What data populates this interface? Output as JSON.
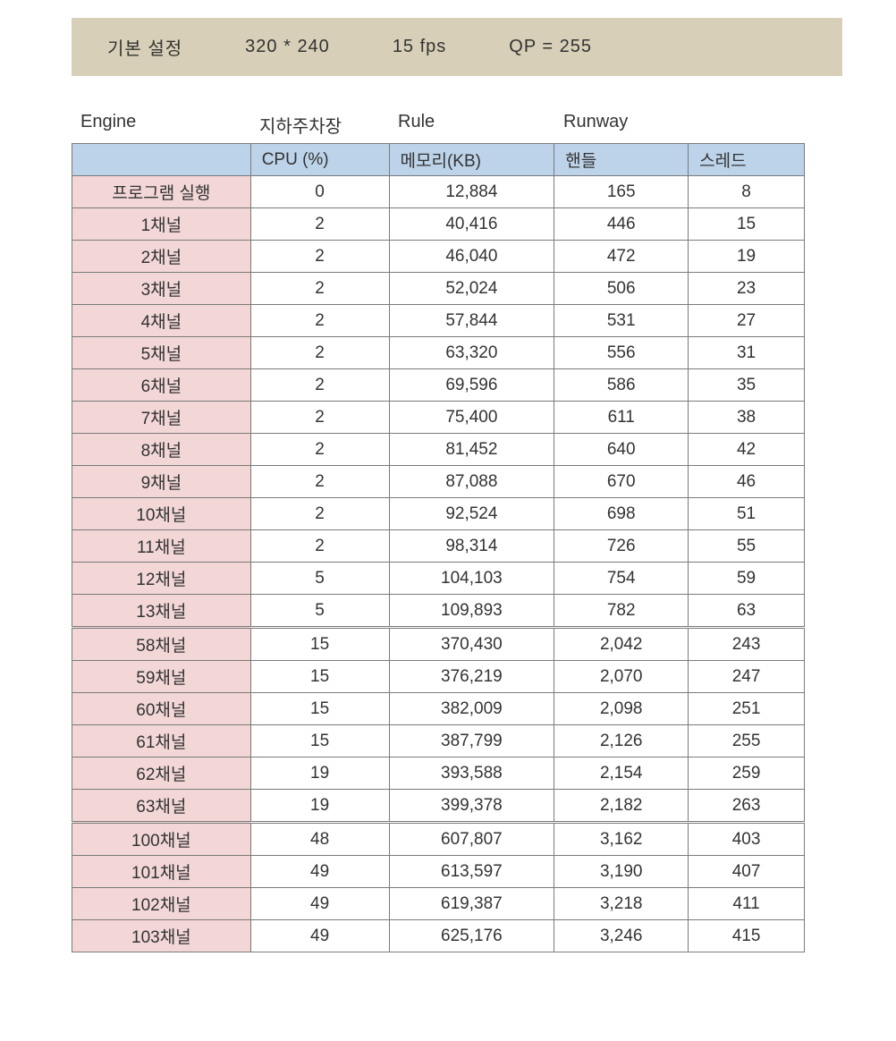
{
  "header": {
    "label": "기본 설정",
    "resolution": "320 * 240",
    "fps": "15 fps",
    "qp": "QP  =  255",
    "bg_color": "#d7cfb7"
  },
  "super_headers": {
    "engine": "Engine",
    "parking": "지하주차장",
    "rule": "Rule",
    "runway": "Runway"
  },
  "columns": {
    "blank": "",
    "cpu": "CPU  (%)",
    "memory": "메모리(KB)",
    "handle": "핸들",
    "thread": "스레드",
    "header_bg": "#bdd3e9"
  },
  "row_label_bg": "#f3d7d7",
  "border_color": "#7a7a7a",
  "sections": [
    {
      "rows": [
        {
          "label": "프로그램 실행",
          "cpu": "0",
          "memory": "12,884",
          "handle": "165",
          "thread": "8"
        },
        {
          "label": "1채널",
          "cpu": "2",
          "memory": "40,416",
          "handle": "446",
          "thread": "15"
        },
        {
          "label": "2채널",
          "cpu": "2",
          "memory": "46,040",
          "handle": "472",
          "thread": "19"
        },
        {
          "label": "3채널",
          "cpu": "2",
          "memory": "52,024",
          "handle": "506",
          "thread": "23"
        },
        {
          "label": "4채널",
          "cpu": "2",
          "memory": "57,844",
          "handle": "531",
          "thread": "27"
        },
        {
          "label": "5채널",
          "cpu": "2",
          "memory": "63,320",
          "handle": "556",
          "thread": "31"
        },
        {
          "label": "6채널",
          "cpu": "2",
          "memory": "69,596",
          "handle": "586",
          "thread": "35"
        },
        {
          "label": "7채널",
          "cpu": "2",
          "memory": "75,400",
          "handle": "611",
          "thread": "38"
        },
        {
          "label": "8채널",
          "cpu": "2",
          "memory": "81,452",
          "handle": "640",
          "thread": "42"
        },
        {
          "label": "9채널",
          "cpu": "2",
          "memory": "87,088",
          "handle": "670",
          "thread": "46"
        },
        {
          "label": "10채널",
          "cpu": "2",
          "memory": "92,524",
          "handle": "698",
          "thread": "51"
        },
        {
          "label": "11채널",
          "cpu": "2",
          "memory": "98,314",
          "handle": "726",
          "thread": "55"
        },
        {
          "label": "12채널",
          "cpu": "5",
          "memory": "104,103",
          "handle": "754",
          "thread": "59"
        },
        {
          "label": "13채널",
          "cpu": "5",
          "memory": "109,893",
          "handle": "782",
          "thread": "63"
        }
      ]
    },
    {
      "rows": [
        {
          "label": "58채널",
          "cpu": "15",
          "memory": "370,430",
          "handle": "2,042",
          "thread": "243"
        },
        {
          "label": "59채널",
          "cpu": "15",
          "memory": "376,219",
          "handle": "2,070",
          "thread": "247"
        },
        {
          "label": "60채널",
          "cpu": "15",
          "memory": "382,009",
          "handle": "2,098",
          "thread": "251"
        },
        {
          "label": "61채널",
          "cpu": "15",
          "memory": "387,799",
          "handle": "2,126",
          "thread": "255"
        },
        {
          "label": "62채널",
          "cpu": "19",
          "memory": "393,588",
          "handle": "2,154",
          "thread": "259"
        },
        {
          "label": "63채널",
          "cpu": "19",
          "memory": "399,378",
          "handle": "2,182",
          "thread": "263"
        }
      ]
    },
    {
      "rows": [
        {
          "label": "100채널",
          "cpu": "48",
          "memory": "607,807",
          "handle": "3,162",
          "thread": "403"
        },
        {
          "label": "101채널",
          "cpu": "49",
          "memory": "613,597",
          "handle": "3,190",
          "thread": "407"
        },
        {
          "label": "102채널",
          "cpu": "49",
          "memory": "619,387",
          "handle": "3,218",
          "thread": "411"
        },
        {
          "label": "103채널",
          "cpu": "49",
          "memory": "625,176",
          "handle": "3,246",
          "thread": "415"
        }
      ]
    }
  ]
}
